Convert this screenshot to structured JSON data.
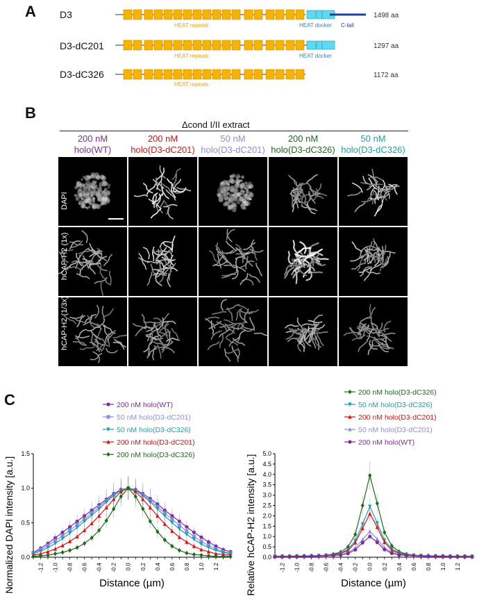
{
  "panels": {
    "A": "A",
    "B": "B",
    "C": "C"
  },
  "panel_a": {
    "constructs": [
      {
        "name": "D3",
        "length": "1498 aa",
        "labels": {
          "heat": "HEAT repeats",
          "docker": "HEAT docker",
          "tail": "C-tail"
        }
      },
      {
        "name": "D3-dC201",
        "length": "1297 aa",
        "labels": {
          "heat": "HEAT repeats",
          "docker": "HEAT docker"
        }
      },
      {
        "name": "D3-dC326",
        "length": "1172 aa",
        "labels": {
          "heat": "HEAT repeats"
        }
      }
    ],
    "colors": {
      "heat": "#f5b400",
      "docker": "#5fd8f0",
      "tail": "#1a3f9e",
      "line": "#999999"
    }
  },
  "panel_b": {
    "header": "Δcond I/II extract",
    "columns": [
      {
        "line1": "200 nM",
        "line2": "holo(WT)",
        "color": "#7a2e9a"
      },
      {
        "line1": "200 nM",
        "line2": "holo(D3-dC201)",
        "color": "#e01010"
      },
      {
        "line1": "50 nM",
        "line2": "holo(D3-dC201)",
        "color": "#8c8cf0"
      },
      {
        "line1": "200 nM",
        "line2": "holo(D3-dC326)",
        "color": "#1c6b1c"
      },
      {
        "line1": "50 nM",
        "line2": "holo(D3-dC326)",
        "color": "#1aa0b0"
      }
    ],
    "rows": [
      "DAPI",
      "hCAP-H2 (1x)",
      "hCAP-H2 (1/3x)"
    ]
  },
  "chart_data": [
    {
      "type": "line",
      "xlabel": "Distance (µm)",
      "ylabel": "Normalized DAPI intensity [a.u.]",
      "xlim": [
        -1.3,
        1.4
      ],
      "ylim": [
        0,
        1.5
      ],
      "yticks": [
        0.0,
        0.5,
        1.0,
        1.5
      ],
      "xticks": [
        -1.2,
        -1.0,
        -0.8,
        -0.6,
        -0.4,
        -0.2,
        0.0,
        0.2,
        0.4,
        0.6,
        0.8,
        1.0,
        1.2
      ],
      "legend_position": "top-right",
      "series": [
        {
          "name": "200 nM holo(WT)",
          "color": "#7a2e9a",
          "marker": "circle",
          "x": [
            -1.3,
            -1.2,
            -1.1,
            -1.0,
            -0.9,
            -0.8,
            -0.7,
            -0.6,
            -0.5,
            -0.4,
            -0.3,
            -0.2,
            -0.1,
            0.0,
            0.1,
            0.2,
            0.3,
            0.4,
            0.5,
            0.6,
            0.7,
            0.8,
            0.9,
            1.0,
            1.1,
            1.2,
            1.3,
            1.4
          ],
          "y": [
            0.07,
            0.13,
            0.2,
            0.28,
            0.36,
            0.44,
            0.52,
            0.6,
            0.68,
            0.76,
            0.84,
            0.92,
            0.98,
            1.0,
            0.98,
            0.92,
            0.85,
            0.77,
            0.68,
            0.6,
            0.52,
            0.44,
            0.36,
            0.29,
            0.22,
            0.16,
            0.11,
            0.08
          ]
        },
        {
          "name": "50 nM holo(D3-dC201)",
          "color": "#8c8cf0",
          "marker": "square",
          "x": [
            -1.3,
            -1.2,
            -1.1,
            -1.0,
            -0.9,
            -0.8,
            -0.7,
            -0.6,
            -0.5,
            -0.4,
            -0.3,
            -0.2,
            -0.1,
            0.0,
            0.1,
            0.2,
            0.3,
            0.4,
            0.5,
            0.6,
            0.7,
            0.8,
            0.9,
            1.0,
            1.1,
            1.2,
            1.3,
            1.4
          ],
          "y": [
            0.06,
            0.11,
            0.17,
            0.24,
            0.31,
            0.39,
            0.47,
            0.55,
            0.64,
            0.73,
            0.82,
            0.9,
            0.97,
            1.0,
            0.97,
            0.9,
            0.82,
            0.73,
            0.64,
            0.55,
            0.46,
            0.38,
            0.3,
            0.23,
            0.17,
            0.12,
            0.08,
            0.06
          ]
        },
        {
          "name": "50 nM holo(D3-dC326)",
          "color": "#1aa0b0",
          "marker": "triangle-down",
          "x": [
            -1.3,
            -1.2,
            -1.1,
            -1.0,
            -0.9,
            -0.8,
            -0.7,
            -0.6,
            -0.5,
            -0.4,
            -0.3,
            -0.2,
            -0.1,
            0.0,
            0.1,
            0.2,
            0.3,
            0.4,
            0.5,
            0.6,
            0.7,
            0.8,
            0.9,
            1.0,
            1.1,
            1.2,
            1.3,
            1.4
          ],
          "y": [
            0.05,
            0.09,
            0.14,
            0.2,
            0.27,
            0.35,
            0.43,
            0.52,
            0.61,
            0.7,
            0.8,
            0.89,
            0.97,
            1.0,
            0.97,
            0.89,
            0.8,
            0.7,
            0.6,
            0.5,
            0.41,
            0.33,
            0.26,
            0.19,
            0.14,
            0.1,
            0.07,
            0.05
          ]
        },
        {
          "name": "200 nM holo(D3-dC201)",
          "color": "#e01010",
          "marker": "triangle-up",
          "x": [
            -1.3,
            -1.2,
            -1.1,
            -1.0,
            -0.9,
            -0.8,
            -0.7,
            -0.6,
            -0.5,
            -0.4,
            -0.3,
            -0.2,
            -0.1,
            0.0,
            0.1,
            0.2,
            0.3,
            0.4,
            0.5,
            0.6,
            0.7,
            0.8,
            0.9,
            1.0,
            1.1,
            1.2,
            1.3,
            1.4
          ],
          "y": [
            0.03,
            0.05,
            0.08,
            0.12,
            0.17,
            0.23,
            0.3,
            0.39,
            0.49,
            0.6,
            0.72,
            0.84,
            0.95,
            1.0,
            0.95,
            0.84,
            0.72,
            0.6,
            0.48,
            0.38,
            0.29,
            0.22,
            0.16,
            0.11,
            0.08,
            0.05,
            0.04,
            0.03
          ]
        },
        {
          "name": "200 nM holo(D3-dC326)",
          "color": "#1c6b1c",
          "marker": "diamond",
          "x": [
            -1.3,
            -1.2,
            -1.1,
            -1.0,
            -0.9,
            -0.8,
            -0.7,
            -0.6,
            -0.5,
            -0.4,
            -0.3,
            -0.2,
            -0.1,
            0.0,
            0.1,
            0.2,
            0.3,
            0.4,
            0.5,
            0.6,
            0.7,
            0.8,
            0.9,
            1.0,
            1.1,
            1.2,
            1.3,
            1.4
          ],
          "y": [
            0.01,
            0.02,
            0.03,
            0.05,
            0.07,
            0.1,
            0.14,
            0.2,
            0.28,
            0.39,
            0.53,
            0.7,
            0.88,
            1.0,
            0.88,
            0.7,
            0.52,
            0.37,
            0.25,
            0.16,
            0.1,
            0.06,
            0.04,
            0.03,
            0.02,
            0.01,
            0.01,
            0.01
          ]
        }
      ]
    },
    {
      "type": "line",
      "xlabel": "Distance (µm)",
      "ylabel": "Relative hCAP-H2 intensity [a.u.]",
      "xlim": [
        -1.3,
        1.4
      ],
      "ylim": [
        0,
        5.0
      ],
      "yticks": [
        0.0,
        0.5,
        1.0,
        1.5,
        2.0,
        2.5,
        3.0,
        3.5,
        4.0,
        4.5,
        5.0
      ],
      "xticks": [
        -1.2,
        -1.0,
        -0.8,
        -0.6,
        -0.4,
        -0.2,
        0.0,
        0.2,
        0.4,
        0.6,
        0.8,
        1.0,
        1.2
      ],
      "legend_position": "top-right",
      "series": [
        {
          "name": "200 nM holo(D3-dC326)",
          "color": "#1c6b1c",
          "marker": "diamond",
          "x": [
            -1.3,
            -1.2,
            -1.1,
            -1.0,
            -0.9,
            -0.8,
            -0.7,
            -0.6,
            -0.5,
            -0.4,
            -0.3,
            -0.2,
            -0.1,
            0.0,
            0.1,
            0.2,
            0.3,
            0.4,
            0.5,
            0.6,
            0.7,
            0.8,
            0.9,
            1.0,
            1.1,
            1.2,
            1.3,
            1.4
          ],
          "y": [
            0.05,
            0.05,
            0.05,
            0.06,
            0.06,
            0.07,
            0.08,
            0.1,
            0.15,
            0.25,
            0.5,
            1.1,
            2.5,
            3.95,
            2.6,
            1.2,
            0.55,
            0.27,
            0.15,
            0.1,
            0.08,
            0.07,
            0.06,
            0.06,
            0.05,
            0.05,
            0.05,
            0.05
          ]
        },
        {
          "name": "50 nM holo(D3-dC326)",
          "color": "#1aa0b0",
          "marker": "triangle-down",
          "x": [
            -1.3,
            -1.2,
            -1.1,
            -1.0,
            -0.9,
            -0.8,
            -0.7,
            -0.6,
            -0.5,
            -0.4,
            -0.3,
            -0.2,
            -0.1,
            0.0,
            0.1,
            0.2,
            0.3,
            0.4,
            0.5,
            0.6,
            0.7,
            0.8,
            0.9,
            1.0,
            1.1,
            1.2,
            1.3,
            1.4
          ],
          "y": [
            0.04,
            0.04,
            0.04,
            0.05,
            0.05,
            0.06,
            0.07,
            0.09,
            0.13,
            0.2,
            0.38,
            0.8,
            1.6,
            2.45,
            1.65,
            0.82,
            0.4,
            0.21,
            0.13,
            0.09,
            0.07,
            0.06,
            0.05,
            0.05,
            0.04,
            0.04,
            0.04,
            0.04
          ]
        },
        {
          "name": "200 nM holo(D3-dC201)",
          "color": "#e01010",
          "marker": "triangle-up",
          "x": [
            -1.3,
            -1.2,
            -1.1,
            -1.0,
            -0.9,
            -0.8,
            -0.7,
            -0.6,
            -0.5,
            -0.4,
            -0.3,
            -0.2,
            -0.1,
            0.0,
            0.1,
            0.2,
            0.3,
            0.4,
            0.5,
            0.6,
            0.7,
            0.8,
            0.9,
            1.0,
            1.1,
            1.2,
            1.3,
            1.4
          ],
          "y": [
            0.04,
            0.04,
            0.04,
            0.05,
            0.05,
            0.06,
            0.07,
            0.08,
            0.12,
            0.18,
            0.33,
            0.7,
            1.4,
            2.1,
            1.45,
            0.72,
            0.34,
            0.18,
            0.12,
            0.08,
            0.07,
            0.06,
            0.05,
            0.05,
            0.04,
            0.04,
            0.04,
            0.04
          ]
        },
        {
          "name": "50 nM holo(D3-dC201)",
          "color": "#8c8cf0",
          "marker": "triangle-up",
          "x": [
            -1.3,
            -1.2,
            -1.1,
            -1.0,
            -0.9,
            -0.8,
            -0.7,
            -0.6,
            -0.5,
            -0.4,
            -0.3,
            -0.2,
            -0.1,
            0.0,
            0.1,
            0.2,
            0.3,
            0.4,
            0.5,
            0.6,
            0.7,
            0.8,
            0.9,
            1.0,
            1.1,
            1.2,
            1.3,
            1.4
          ],
          "y": [
            0.03,
            0.03,
            0.03,
            0.04,
            0.04,
            0.05,
            0.06,
            0.07,
            0.09,
            0.13,
            0.22,
            0.45,
            0.85,
            1.25,
            0.88,
            0.46,
            0.23,
            0.13,
            0.09,
            0.07,
            0.06,
            0.05,
            0.04,
            0.04,
            0.03,
            0.03,
            0.03,
            0.03
          ]
        },
        {
          "name": "200 nM holo(WT)",
          "color": "#7a2e9a",
          "marker": "circle",
          "x": [
            -1.3,
            -1.2,
            -1.1,
            -1.0,
            -0.9,
            -0.8,
            -0.7,
            -0.6,
            -0.5,
            -0.4,
            -0.3,
            -0.2,
            -0.1,
            0.0,
            0.1,
            0.2,
            0.3,
            0.4,
            0.5,
            0.6,
            0.7,
            0.8,
            0.9,
            1.0,
            1.1,
            1.2,
            1.3,
            1.4
          ],
          "y": [
            0.03,
            0.03,
            0.03,
            0.03,
            0.04,
            0.04,
            0.05,
            0.06,
            0.08,
            0.11,
            0.18,
            0.36,
            0.7,
            1.0,
            0.72,
            0.37,
            0.19,
            0.11,
            0.08,
            0.06,
            0.05,
            0.04,
            0.04,
            0.03,
            0.03,
            0.03,
            0.03,
            0.03
          ]
        }
      ]
    }
  ]
}
